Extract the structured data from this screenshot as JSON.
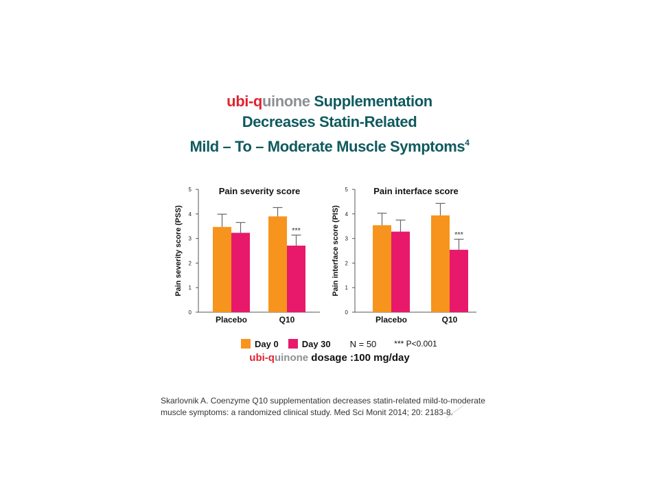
{
  "title": {
    "brand_part1": "ubi-q",
    "brand_part2": "uinone",
    "line1_rest": " Supplementation",
    "line2": "Decreases Statin-Related",
    "line3": "Mild – To – Moderate Muscle Symptoms",
    "footnote": "4"
  },
  "colors": {
    "day0": "#f7941d",
    "day30": "#e8196b",
    "title": "#0f5a5e",
    "brand_red": "#e1232f",
    "brand_gray": "#8d8f92"
  },
  "chart_data": [
    {
      "type": "bar",
      "title": "Pain severity score",
      "ylabel": "Pain severity score (PSS)",
      "ylim": [
        0,
        5
      ],
      "yticks": [
        "0",
        "1",
        "2",
        "3",
        "4",
        "5"
      ],
      "categories": [
        "Placebo",
        "Q10"
      ],
      "series": [
        {
          "name": "Day 0",
          "values": [
            3.47,
            3.9
          ],
          "errors": [
            0.52,
            0.36
          ]
        },
        {
          "name": "Day 30",
          "values": [
            3.23,
            2.71
          ],
          "errors": [
            0.42,
            0.43
          ]
        }
      ],
      "annotations": [
        {
          "category": "Q10",
          "series": "Day 30",
          "text": "***"
        }
      ]
    },
    {
      "type": "bar",
      "title": "Pain interface score",
      "ylabel": "Pain interface score (PIS)",
      "ylim": [
        0,
        5
      ],
      "yticks": [
        "0",
        "1",
        "2",
        "3",
        "4",
        "5"
      ],
      "categories": [
        "Placebo",
        "Q10"
      ],
      "series": [
        {
          "name": "Day 0",
          "values": [
            3.54,
            3.94
          ],
          "errors": [
            0.49,
            0.49
          ]
        },
        {
          "name": "Day 30",
          "values": [
            3.28,
            2.54
          ],
          "errors": [
            0.47,
            0.43
          ]
        }
      ],
      "annotations": [
        {
          "category": "Q10",
          "series": "Day 30",
          "text": "***"
        }
      ]
    }
  ],
  "legend": {
    "day0": "Day 0",
    "day30": "Day 30",
    "n": "N = 50",
    "p": "*** P<0.001"
  },
  "dosage": {
    "brand_part1": "ubi-q",
    "brand_part2": "uinone",
    "text": " dosage :100 mg/day"
  },
  "citation": "Skarlovnik A. Coenzyme Q10 supplementation decreases statin-related mild-to-moderate muscle symptoms: a randomized clinical study. Med Sci Monit 2014; 20: 2183-8."
}
